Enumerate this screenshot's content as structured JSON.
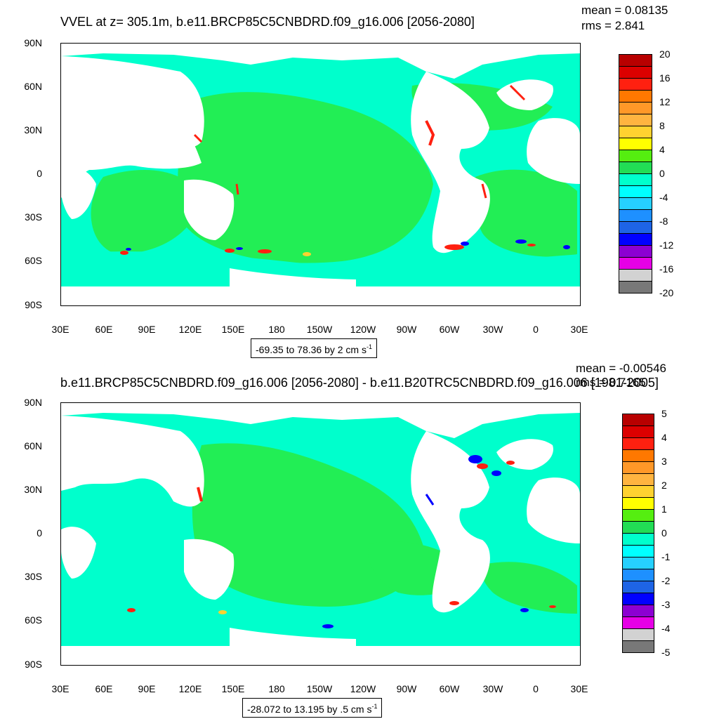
{
  "panels": [
    {
      "id": "top",
      "title": "VVEL at z= 305.1m, b.e11.BRCP85C5CNBDRD.f09_g16.006 [2056-2080]",
      "mean_label": "mean = 0.08135",
      "rms_label": "rms = 2.841",
      "range_text": "-69.35 to 78.36 by 2 cm s",
      "range_unit_exp": "-1",
      "lat_labels": [
        "90N",
        "60N",
        "30N",
        "0",
        "30S",
        "60S",
        "90S"
      ],
      "lon_labels": [
        "30E",
        "60E",
        "90E",
        "120E",
        "150E",
        "180",
        "150W",
        "120W",
        "90W",
        "60W",
        "30W",
        "0",
        "30E"
      ],
      "colorbar": {
        "labels": [
          "20",
          "16",
          "12",
          "8",
          "4",
          "0",
          "-4",
          "-8",
          "-12",
          "-16",
          "-20"
        ],
        "colors": [
          "#b80000",
          "#dc0000",
          "#ff2010",
          "#ff7800",
          "#ff9828",
          "#ffb440",
          "#ffd230",
          "#ffff00",
          "#55ee10",
          "#22dd55",
          "#00ffcc",
          "#00ffff",
          "#26d0ff",
          "#1e90ff",
          "#1e64e6",
          "#0000ff",
          "#8c00d2",
          "#e600e6",
          "#d2d2d2",
          "#787878"
        ]
      }
    },
    {
      "id": "bottom",
      "title": "b.e11.BRCP85C5CNBDRD.f09_g16.006 [2056-2080] - b.e11.B20TRC5CNBDRD.f09_g16.006 [1981-2005]",
      "mean_label": "mean = -0.00546",
      "rms_label": "rms = 0.7165",
      "range_text": "-28.072 to 13.195 by .5 cm s",
      "range_unit_exp": "-1",
      "lat_labels": [
        "90N",
        "60N",
        "30N",
        "0",
        "30S",
        "60S",
        "90S"
      ],
      "lon_labels": [
        "30E",
        "60E",
        "90E",
        "120E",
        "150E",
        "180",
        "150W",
        "120W",
        "90W",
        "60W",
        "30W",
        "0",
        "30E"
      ],
      "colorbar": {
        "labels": [
          "5",
          "4",
          "3",
          "2",
          "1",
          "0",
          "-1",
          "-2",
          "-3",
          "-4",
          "-5"
        ],
        "colors": [
          "#b80000",
          "#dc0000",
          "#ff2010",
          "#ff7800",
          "#ff9828",
          "#ffb440",
          "#ffd230",
          "#ffff00",
          "#55ee10",
          "#22dd55",
          "#00ffcc",
          "#00ffff",
          "#26d0ff",
          "#1e90ff",
          "#1e64e6",
          "#0000ff",
          "#8c00d2",
          "#e600e6",
          "#d2d2d2",
          "#787878"
        ]
      }
    }
  ],
  "colors": {
    "ocean_base": "#00ff88",
    "ocean_cyan": "#00ffcc",
    "land": "#ffffff",
    "hot": "#ff2010",
    "cold": "#0000ff"
  }
}
